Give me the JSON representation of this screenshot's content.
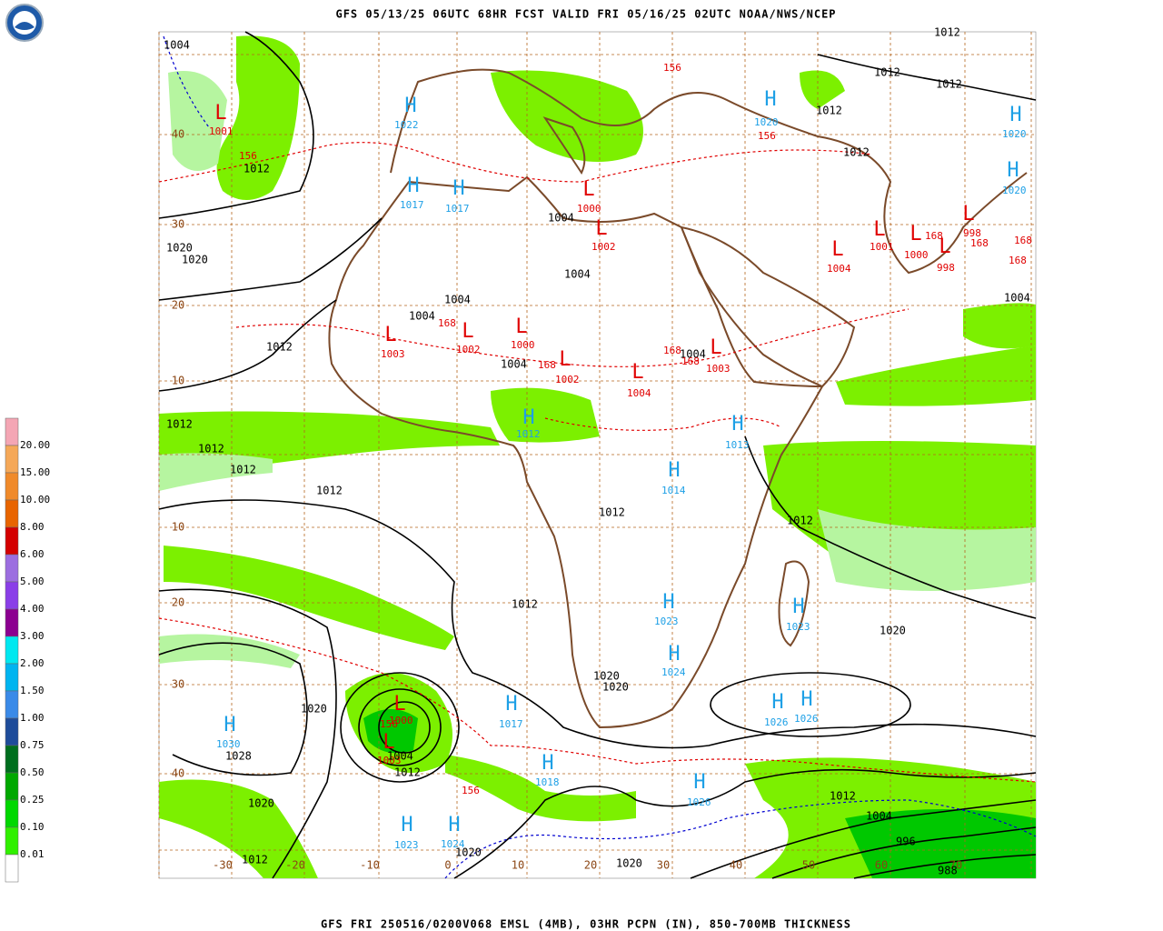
{
  "header": {
    "title": "GFS 05/13/25 06UTC 68HR FCST VALID FRI 05/16/25 02UTC NOAA/NWS/NCEP"
  },
  "footer": {
    "caption": "GFS FRI 250516/0200V068 EMSL (4MB), 03HR PCPN (IN), 850-700MB THICKNESS"
  },
  "legend": {
    "labels": [
      "20.00",
      "15.00",
      "10.00",
      "8.00",
      "6.00",
      "5.00",
      "4.00",
      "3.00",
      "2.00",
      "1.50",
      "1.00",
      "0.75",
      "0.50",
      "0.25",
      "0.10",
      "0.01"
    ],
    "colors": [
      "#f4a6b4",
      "#f5a858",
      "#f08a2a",
      "#e86400",
      "#d40000",
      "#9c6ee0",
      "#8a3ee8",
      "#8c0090",
      "#00e8f0",
      "#00b4f0",
      "#3a8ae8",
      "#1e4c9a",
      "#006e1e",
      "#00a800",
      "#00d800",
      "#30f000",
      "#ffffff"
    ]
  },
  "map": {
    "lat_labels": [
      "40",
      "30",
      "20",
      "10",
      "10",
      "20",
      "30",
      "40"
    ],
    "lon_labels": [
      "-30",
      "-20",
      "-10",
      "0",
      "10",
      "20",
      "30",
      "40",
      "50",
      "60",
      "70"
    ],
    "symbol_colors": {
      "H": "#1ea0e6",
      "L": "#e00000"
    },
    "centers": [
      {
        "symbol": "H",
        "value": "1022"
      },
      {
        "symbol": "H",
        "value": "1017"
      },
      {
        "symbol": "H",
        "value": "1017"
      },
      {
        "symbol": "H",
        "value": "1020"
      },
      {
        "symbol": "H",
        "value": "1020"
      },
      {
        "symbol": "H",
        "value": "1020"
      },
      {
        "symbol": "H",
        "value": "1012"
      },
      {
        "symbol": "H",
        "value": "1013"
      },
      {
        "symbol": "H",
        "value": "1014"
      },
      {
        "symbol": "H",
        "value": "1023"
      },
      {
        "symbol": "H",
        "value": "1023"
      },
      {
        "symbol": "H",
        "value": "1024"
      },
      {
        "symbol": "H",
        "value": "1026"
      },
      {
        "symbol": "H",
        "value": "1026"
      },
      {
        "symbol": "H",
        "value": "1030"
      },
      {
        "symbol": "H",
        "value": "1017"
      },
      {
        "symbol": "H",
        "value": "1018"
      },
      {
        "symbol": "H",
        "value": "1026"
      },
      {
        "symbol": "H",
        "value": "1023"
      },
      {
        "symbol": "H",
        "value": "1024"
      },
      {
        "symbol": "L",
        "value": "1001"
      },
      {
        "symbol": "L",
        "value": "1003"
      },
      {
        "symbol": "L",
        "value": "1002"
      },
      {
        "symbol": "L",
        "value": "1000"
      },
      {
        "symbol": "L",
        "value": "1002"
      },
      {
        "symbol": "L",
        "value": "1004"
      },
      {
        "symbol": "L",
        "value": "1000"
      },
      {
        "symbol": "L",
        "value": "1002"
      },
      {
        "symbol": "L",
        "value": "1001"
      },
      {
        "symbol": "L",
        "value": "1004"
      },
      {
        "symbol": "L",
        "value": "1000"
      },
      {
        "symbol": "L",
        "value": "998"
      },
      {
        "symbol": "L",
        "value": "998"
      },
      {
        "symbol": "L",
        "value": "1003"
      },
      {
        "symbol": "L",
        "value": "1000"
      },
      {
        "symbol": "L",
        "value": "1003"
      }
    ],
    "isobar_labels": [
      "1004",
      "1012",
      "1012",
      "1012",
      "1012",
      "1012",
      "1012",
      "1020",
      "1020",
      "1004",
      "1004",
      "1012",
      "1004",
      "1012",
      "1012",
      "1012",
      "1012",
      "1012",
      "1012",
      "1012",
      "1020",
      "1020",
      "1020",
      "1020",
      "1028",
      "1004",
      "1012",
      "1020",
      "1012",
      "1004",
      "996",
      "1012",
      "1020",
      "1020",
      "988",
      "1004",
      "1004",
      "1004",
      "1004"
    ],
    "thickness_labels": [
      "156",
      "156",
      "156",
      "168",
      "168",
      "168",
      "168",
      "168",
      "168",
      "168",
      "168",
      "156",
      "156"
    ]
  }
}
